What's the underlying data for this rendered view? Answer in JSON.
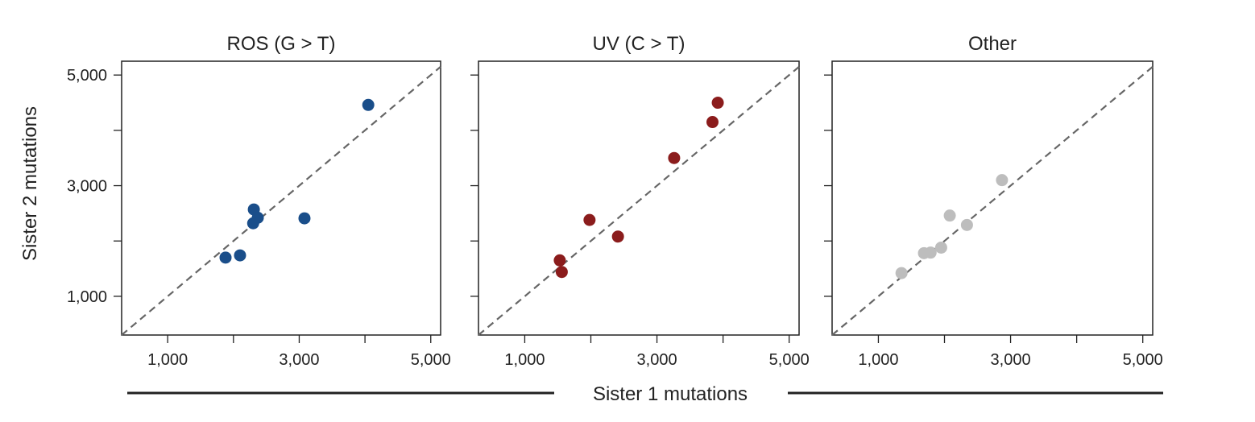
{
  "figure": {
    "xlabel": "Sister 1 mutations",
    "ylabel": "Sister 2 mutations"
  },
  "chart_data": [
    {
      "type": "scatter",
      "title": "ROS (G > T)",
      "xlabel": "Sister 1 mutations",
      "ylabel": "Sister 2 mutations",
      "xlim": [
        300,
        5150
      ],
      "ylim": [
        300,
        5250
      ],
      "x_ticks": [
        1000,
        2000,
        3000,
        4000,
        5000
      ],
      "x_tick_labels": [
        "1,000",
        "",
        "3,000",
        "",
        "5,000"
      ],
      "y_ticks": [
        1000,
        2000,
        3000,
        4000,
        5000
      ],
      "y_tick_labels": [
        "1,000",
        "",
        "3,000",
        "",
        "5,000"
      ],
      "reference_line": "y = x",
      "color": "#1a4e8a",
      "points": [
        {
          "x": 4050,
          "y": 4460
        },
        {
          "x": 3080,
          "y": 2410
        },
        {
          "x": 2310,
          "y": 2570
        },
        {
          "x": 2370,
          "y": 2420
        },
        {
          "x": 2300,
          "y": 2320
        },
        {
          "x": 2100,
          "y": 1740
        },
        {
          "x": 1880,
          "y": 1700
        }
      ]
    },
    {
      "type": "scatter",
      "title": "UV (C > T)",
      "xlabel": "Sister 1 mutations",
      "ylabel": "Sister 2 mutations",
      "xlim": [
        300,
        5150
      ],
      "ylim": [
        300,
        5250
      ],
      "x_ticks": [
        1000,
        2000,
        3000,
        4000,
        5000
      ],
      "x_tick_labels": [
        "1,000",
        "",
        "3,000",
        "",
        "5,000"
      ],
      "y_ticks": [
        1000,
        2000,
        3000,
        4000,
        5000
      ],
      "y_tick_labels": [
        "",
        "",
        "",
        "",
        ""
      ],
      "reference_line": "y = x",
      "color": "#8b1c1c",
      "points": [
        {
          "x": 3920,
          "y": 4500
        },
        {
          "x": 3840,
          "y": 4150
        },
        {
          "x": 3260,
          "y": 3500
        },
        {
          "x": 1980,
          "y": 2380
        },
        {
          "x": 2410,
          "y": 2080
        },
        {
          "x": 1530,
          "y": 1650
        },
        {
          "x": 1560,
          "y": 1440
        }
      ]
    },
    {
      "type": "scatter",
      "title": "Other",
      "xlabel": "Sister 1 mutations",
      "ylabel": "Sister 2 mutations",
      "xlim": [
        300,
        5150
      ],
      "ylim": [
        300,
        5250
      ],
      "x_ticks": [
        1000,
        2000,
        3000,
        4000,
        5000
      ],
      "x_tick_labels": [
        "1,000",
        "",
        "3,000",
        "",
        "5,000"
      ],
      "y_ticks": [
        1000,
        2000,
        3000,
        4000,
        5000
      ],
      "y_tick_labels": [
        "",
        "",
        "",
        "",
        ""
      ],
      "reference_line": "y = x",
      "color": "#bdbdbd",
      "points": [
        {
          "x": 2870,
          "y": 3100
        },
        {
          "x": 2080,
          "y": 2460
        },
        {
          "x": 2340,
          "y": 2290
        },
        {
          "x": 1950,
          "y": 1880
        },
        {
          "x": 1790,
          "y": 1790
        },
        {
          "x": 1690,
          "y": 1780
        },
        {
          "x": 1350,
          "y": 1420
        }
      ]
    }
  ]
}
